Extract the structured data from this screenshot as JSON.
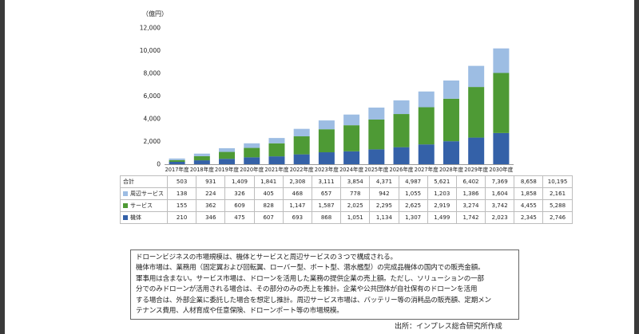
{
  "chart_data": {
    "type": "bar",
    "stacked": true,
    "y_unit": "（億円）",
    "ylim": [
      0,
      12000
    ],
    "yticks": [
      "0",
      "2,000",
      "4,000",
      "6,000",
      "8,000",
      "10,000",
      "12,000"
    ],
    "ytick_values": [
      0,
      2000,
      4000,
      6000,
      8000,
      10000,
      12000
    ],
    "grid": false,
    "categories": [
      "2017年度",
      "2018年度",
      "2019年度",
      "2020年度",
      "2021年度",
      "2022年度",
      "2023年度",
      "2024年度",
      "2025年度",
      "2026年度",
      "2027年度",
      "2028年度",
      "2029年度",
      "2030年度"
    ],
    "series": [
      {
        "name": "機体",
        "color": "#3461a8",
        "values": [
          210,
          346,
          475,
          607,
          693,
          868,
          1051,
          1134,
          1307,
          1499,
          1742,
          2023,
          2345,
          2746
        ],
        "labels": [
          "210",
          "346",
          "475",
          "607",
          "693",
          "868",
          "1,051",
          "1,134",
          "1,307",
          "1,499",
          "1,742",
          "2,023",
          "2,345",
          "2,746"
        ]
      },
      {
        "name": "サービス",
        "color": "#4e9a35",
        "values": [
          155,
          362,
          609,
          828,
          1147,
          1587,
          2025,
          2295,
          2625,
          2919,
          3274,
          3742,
          4455,
          5288
        ],
        "labels": [
          "155",
          "362",
          "609",
          "828",
          "1,147",
          "1,587",
          "2,025",
          "2,295",
          "2,625",
          "2,919",
          "3,274",
          "3,742",
          "4,455",
          "5,288"
        ]
      },
      {
        "name": "周辺サービス",
        "color": "#9dbde3",
        "values": [
          138,
          224,
          326,
          405,
          468,
          657,
          778,
          942,
          1055,
          1203,
          1386,
          1604,
          1858,
          2161
        ],
        "labels": [
          "138",
          "224",
          "326",
          "405",
          "468",
          "657",
          "778",
          "942",
          "1,055",
          "1,203",
          "1,386",
          "1,604",
          "1,858",
          "2,161"
        ]
      }
    ],
    "total": {
      "name": "合計",
      "values": [
        503,
        931,
        1409,
        1841,
        2308,
        3111,
        3854,
        4371,
        4987,
        5621,
        6402,
        7369,
        8658,
        10195
      ],
      "labels": [
        "503",
        "931",
        "1,409",
        "1,841",
        "2,308",
        "3,111",
        "3,854",
        "4,371",
        "4,987",
        "5,621",
        "6,402",
        "7,369",
        "8,658",
        "10,195"
      ]
    }
  },
  "note": {
    "lines": [
      "ドローンビジネスの市場規模は、機体とサービスと周辺サービスの３つで構成される。",
      "機体市場は、業務用（固定翼および回転翼、ローバー型、ボート型、潜水艦型）の完成品機体の国内での販売金額。",
      "軍事用は含まない。サービス市場は、ドローンを活用した業務の提供企業の売上額。ただし、ソリューションの一部",
      "分でのみドローンが活用される場合は、その部分のみの売上を推計。企業や公共団体が自社保有のドローンを活用",
      "する場合は、外部企業に委託した場合を想定し推計。周辺サービス市場は、バッテリー等の消耗品の販売額、定期メン",
      "テナンス費用、人材育成や任意保険、ドローンポート等の市場規模。"
    ]
  },
  "source": "出所：インプレス総合研究所作成"
}
